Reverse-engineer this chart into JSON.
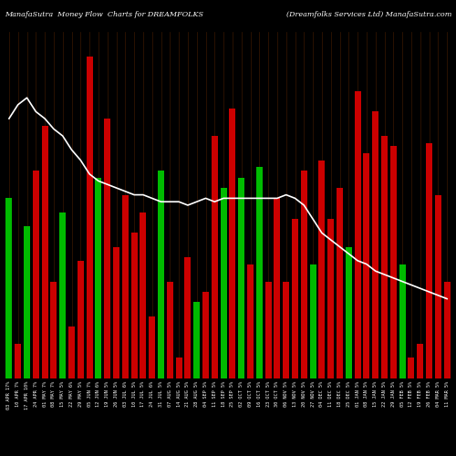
{
  "title_left": "ManafaSutra  Money Flow  Charts for DREAMFOLKS",
  "title_right": "(Dreamfolks Services Ltd) ManafaSutra.com",
  "background_color": "#000000",
  "grid_color": "#3a1800",
  "bar_colors": [
    "#00bb00",
    "#cc0000",
    "#00bb00",
    "#cc0000",
    "#cc0000",
    "#cc0000",
    "#00bb00",
    "#cc0000",
    "#cc0000",
    "#cc0000",
    "#00bb00",
    "#cc0000",
    "#cc0000",
    "#cc0000",
    "#cc0000",
    "#cc0000",
    "#cc0000",
    "#00bb00",
    "#cc0000",
    "#cc0000",
    "#cc0000",
    "#00bb00",
    "#cc0000",
    "#cc0000",
    "#00bb00",
    "#cc0000",
    "#00bb00",
    "#cc0000",
    "#00bb00",
    "#cc0000",
    "#cc0000",
    "#cc0000",
    "#cc0000",
    "#cc0000",
    "#00bb00",
    "#cc0000",
    "#cc0000",
    "#cc0000",
    "#00bb00",
    "#cc0000",
    "#cc0000",
    "#cc0000",
    "#cc0000",
    "#cc0000",
    "#00bb00",
    "#cc0000",
    "#cc0000",
    "#cc0000",
    "#cc0000",
    "#cc0000"
  ],
  "bar_values": [
    52,
    10,
    44,
    60,
    73,
    28,
    48,
    15,
    34,
    93,
    58,
    75,
    38,
    53,
    42,
    48,
    18,
    60,
    28,
    6,
    35,
    22,
    25,
    70,
    55,
    78,
    58,
    33,
    61,
    28,
    52,
    28,
    46,
    60,
    33,
    63,
    46,
    55,
    38,
    83,
    65,
    77,
    70,
    67,
    33,
    6,
    10,
    68,
    53,
    28
  ],
  "line_values": [
    75,
    79,
    81,
    77,
    75,
    72,
    70,
    66,
    63,
    59,
    57,
    56,
    55,
    54,
    53,
    53,
    52,
    51,
    51,
    51,
    50,
    51,
    52,
    51,
    52,
    52,
    52,
    52,
    52,
    52,
    52,
    53,
    52,
    50,
    46,
    42,
    40,
    38,
    36,
    34,
    33,
    31,
    30,
    29,
    28,
    27,
    26,
    25,
    24,
    23
  ],
  "labels": [
    "03 APR 17%",
    "10 APR 7%",
    "17 APR 10%",
    "24 APR 7%",
    "01 MAY 7%",
    "08 MAY 7%",
    "15 MAY 5%",
    "22 MAY 6%",
    "29 MAY 5%",
    "05 JUN 7%",
    "12 JUN 6%",
    "19 JUN 5%",
    "26 JUN 5%",
    "03 JUL 6%",
    "10 JUL 5%",
    "17 JUL 5%",
    "24 JUL 6%",
    "31 JUL 5%",
    "07 AUG 5%",
    "14 AUG 5%",
    "21 AUG 5%",
    "28 AUG 5%",
    "04 SEP 5%",
    "11 SEP 5%",
    "18 SEP 5%",
    "25 SEP 5%",
    "02 OCT 5%",
    "09 OCT 5%",
    "16 OCT 5%",
    "23 OCT 5%",
    "30 OCT 5%",
    "06 NOV 5%",
    "13 NOV 5%",
    "20 NOV 5%",
    "27 NOV 5%",
    "04 DEC 5%",
    "11 DEC 5%",
    "18 DEC 5%",
    "25 DEC 5%",
    "01 JAN 5%",
    "08 JAN 5%",
    "15 JAN 5%",
    "22 JAN 5%",
    "29 JAN 5%",
    "05 FEB 5%",
    "12 FEB 5%",
    "19 FEB 5%",
    "26 FEB 5%",
    "04 MAR 5%",
    "11 MAR 5%"
  ],
  "title_fontsize": 5.8,
  "label_fontsize": 3.8,
  "line_color": "#ffffff",
  "line_width": 1.2
}
